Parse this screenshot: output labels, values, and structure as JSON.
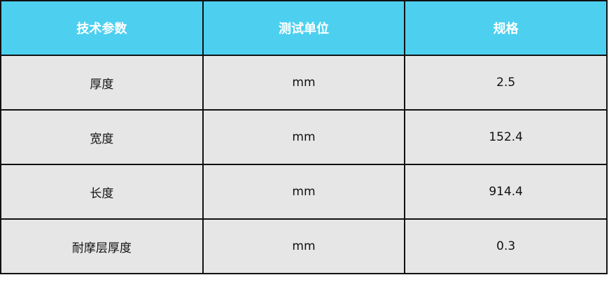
{
  "table": {
    "headers": [
      "技术参数",
      "测试单位",
      "规格"
    ],
    "rows": [
      [
        "厚度",
        "mm",
        "2.5"
      ],
      [
        "宽度",
        "mm",
        "152.4"
      ],
      [
        "长度",
        "mm",
        "914.4"
      ],
      [
        "耐摩层厚度",
        "mm",
        "0.3"
      ]
    ]
  },
  "colors": {
    "header_bg": "#4dd0f0",
    "row_bg": "#e6e6e6",
    "header_text": "#ffffff"
  }
}
